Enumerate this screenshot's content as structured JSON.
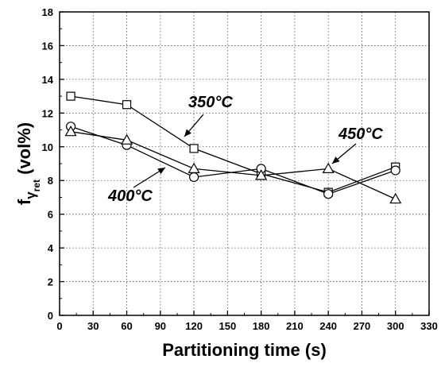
{
  "chart_data": {
    "type": "line",
    "x": [
      10,
      60,
      120,
      180,
      240,
      300
    ],
    "xlabel": "Partitioning time (s)",
    "ylabel": {
      "main": "f",
      "sub1": "γ",
      "sub2": "ret",
      "rest": " (vol%)"
    },
    "xlim": [
      0,
      330
    ],
    "ylim": [
      0,
      18
    ],
    "xticks": [
      "0",
      "30",
      "60",
      "90",
      "120",
      "150",
      "180",
      "210",
      "240",
      "270",
      "300",
      "330"
    ],
    "yticks": [
      "0",
      "2",
      "4",
      "6",
      "8",
      "10",
      "12",
      "14",
      "16",
      "18"
    ],
    "grid": true,
    "series": [
      {
        "name": "350°C",
        "marker": "square",
        "values": [
          13.0,
          12.5,
          9.9,
          8.4,
          7.3,
          8.8
        ]
      },
      {
        "name": "400°C",
        "marker": "circle",
        "values": [
          11.2,
          10.1,
          8.2,
          8.7,
          7.2,
          8.6
        ]
      },
      {
        "name": "450°C",
        "marker": "triangle",
        "values": [
          10.9,
          10.4,
          8.7,
          8.3,
          8.7,
          6.9
        ]
      }
    ],
    "annotations": [
      {
        "text": "350°C",
        "series": "350°C"
      },
      {
        "text": "400°C",
        "series": "400°C"
      },
      {
        "text": "450°C",
        "series": "450°C"
      }
    ]
  }
}
